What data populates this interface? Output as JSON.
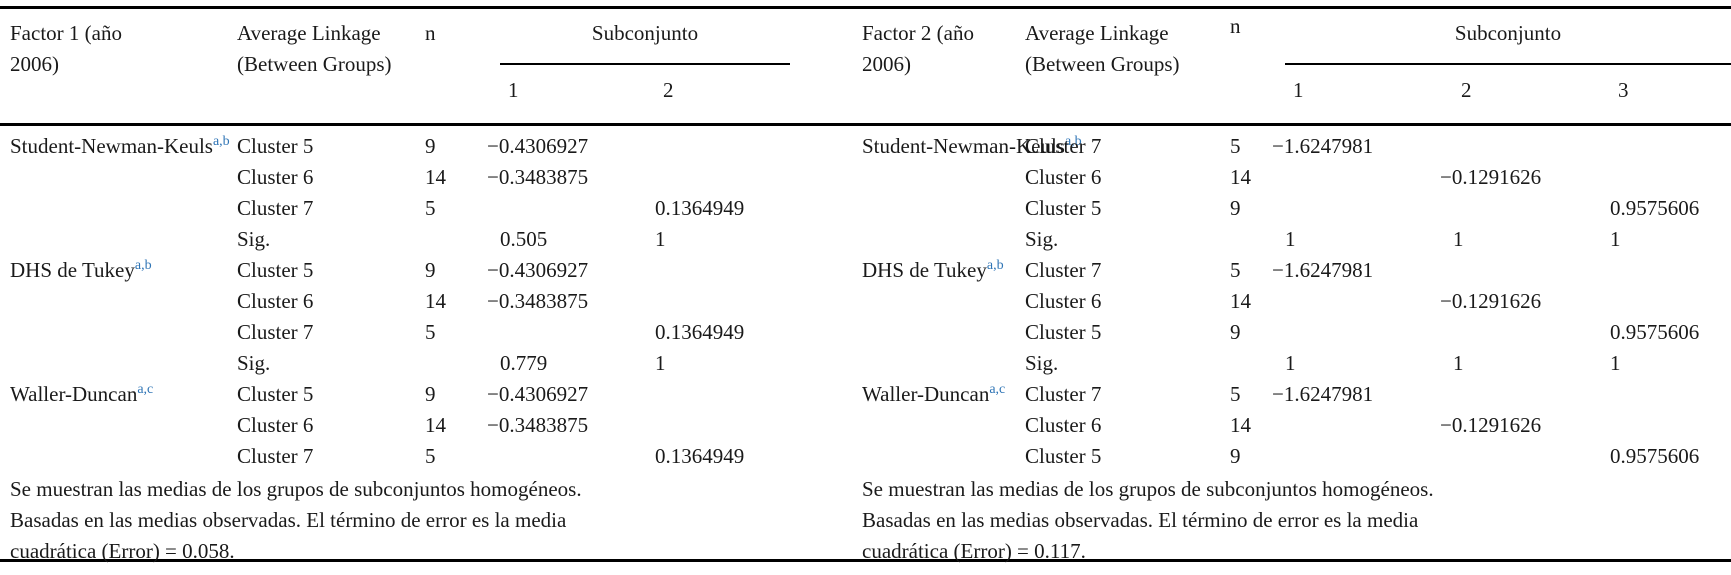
{
  "colors": {
    "text": "#1a1a1a",
    "rule": "#000000",
    "superscript_marker": "#2e74b5",
    "background": "#ffffff"
  },
  "tables": [
    {
      "factor_header": "Factor 1 (año 2006)",
      "linkage_header": "Average Linkage (Between Groups)",
      "n_header": "n",
      "subset_header": "Subconjunto",
      "subset_columns": [
        "1",
        "2"
      ],
      "groups": [
        {
          "method": "Student-Newman-Keuls",
          "footnote_marks": "a,b",
          "rows": [
            [
              "Cluster 5",
              "9",
              "−0.4306927",
              ""
            ],
            [
              "Cluster 6",
              "14",
              "−0.3483875",
              ""
            ],
            [
              "Cluster 7",
              "5",
              "",
              "0.1364949"
            ],
            [
              "Sig.",
              "",
              "0.505",
              "1"
            ]
          ]
        },
        {
          "method": "DHS de Tukey",
          "footnote_marks": "a,b",
          "rows": [
            [
              "Cluster 5",
              "9",
              "−0.4306927",
              ""
            ],
            [
              "Cluster 6",
              "14",
              "−0.3483875",
              ""
            ],
            [
              "Cluster 7",
              "5",
              "",
              "0.1364949"
            ],
            [
              "Sig.",
              "",
              "0.779",
              "1"
            ]
          ]
        },
        {
          "method": "Waller-Duncan",
          "footnote_marks": "a,c",
          "rows": [
            [
              "Cluster 5",
              "9",
              "−0.4306927",
              ""
            ],
            [
              "Cluster 6",
              "14",
              "−0.3483875",
              ""
            ],
            [
              "Cluster 7",
              "5",
              "",
              "0.1364949"
            ]
          ]
        }
      ],
      "footnote": "Se muestran las medias de los grupos de subconjuntos homogéneos. Basadas en las medias observadas. El término de error es la media cuadrática (Error) = 0.058."
    },
    {
      "factor_header": "Factor 2 (año 2006)",
      "linkage_header": "Average Linkage (Between Groups)",
      "n_header": "n",
      "subset_header": "Subconjunto",
      "subset_columns": [
        "1",
        "2",
        "3"
      ],
      "groups": [
        {
          "method": "Student-Newman-Keuls",
          "footnote_marks": "a,b",
          "rows": [
            [
              "Cluster 7",
              "5",
              "−1.6247981",
              "",
              ""
            ],
            [
              "Cluster 6",
              "14",
              "",
              "−0.1291626",
              ""
            ],
            [
              "Cluster 5",
              "9",
              "",
              "",
              "0.9575606"
            ],
            [
              "Sig.",
              "",
              "1",
              "1",
              "1"
            ]
          ]
        },
        {
          "method": "DHS de Tukey",
          "footnote_marks": "a,b",
          "rows": [
            [
              "Cluster 7",
              "5",
              "−1.6247981",
              "",
              ""
            ],
            [
              "Cluster 6",
              "14",
              "",
              "−0.1291626",
              ""
            ],
            [
              "Cluster 5",
              "9",
              "",
              "",
              "0.9575606"
            ],
            [
              "Sig.",
              "",
              "1",
              "1",
              "1"
            ]
          ]
        },
        {
          "method": "Waller-Duncan",
          "footnote_marks": "a,c",
          "rows": [
            [
              "Cluster 7",
              "5",
              "−1.6247981",
              "",
              ""
            ],
            [
              "Cluster 6",
              "14",
              "",
              "−0.1291626",
              ""
            ],
            [
              "Cluster 5",
              "9",
              "",
              "",
              "0.9575606"
            ]
          ]
        }
      ],
      "footnote": "Se muestran las medias de los grupos de subconjuntos homogéneos. Basadas en las medias observadas. El término de error es la media cuadrática (Error) = 0.117."
    }
  ]
}
